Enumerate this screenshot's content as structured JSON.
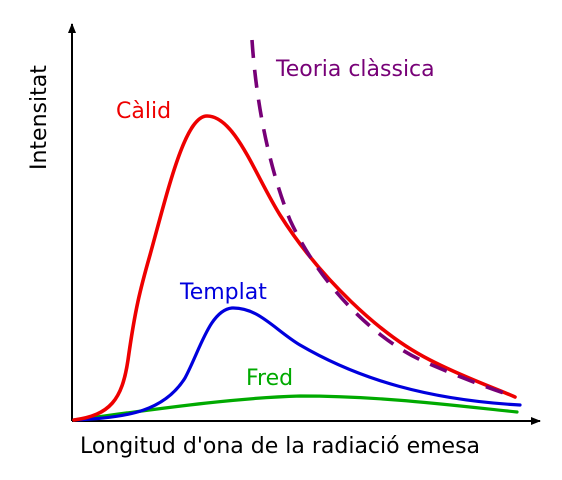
{
  "chart_data": {
    "type": "line",
    "xlabel": "Longitud d'ona de la radiació emesa",
    "ylabel": "Intensitat",
    "grid": false,
    "series": [
      {
        "name": "Càlid",
        "color": "#ee0000",
        "style": "solid"
      },
      {
        "name": "Templat",
        "color": "#0000dd",
        "style": "solid"
      },
      {
        "name": "Fred",
        "color": "#00aa00",
        "style": "solid"
      },
      {
        "name": "Teoria clàssica",
        "color": "#770077",
        "style": "dashed"
      }
    ]
  },
  "colors": {
    "axis": "#000000",
    "background": "#ffffff"
  }
}
